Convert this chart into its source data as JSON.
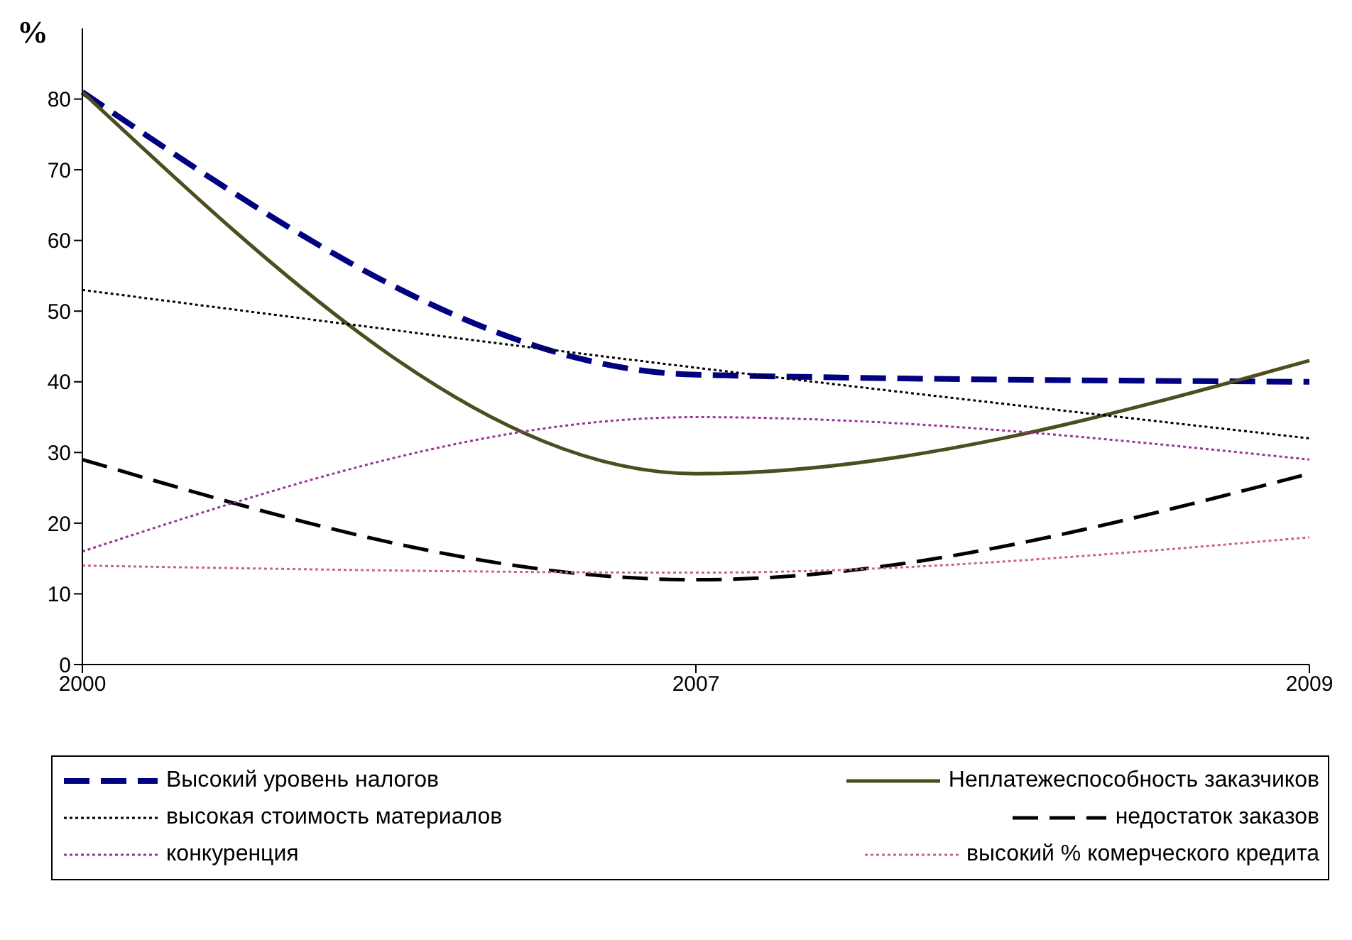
{
  "chart_data": {
    "type": "line",
    "ylabel": "%",
    "categories": [
      "2000",
      "2007",
      "2009"
    ],
    "ylim": [
      0,
      90
    ],
    "yticks": [
      0,
      10,
      20,
      30,
      40,
      50,
      60,
      70,
      80
    ],
    "grid": false,
    "legend": "bottom",
    "series": [
      {
        "name": "Высокий уровень налогов",
        "color": "#000080",
        "line_style": "dashed",
        "values": [
          81,
          41,
          40
        ]
      },
      {
        "name": "Неплатежеспособность заказчиков",
        "color": "#4d4d1f",
        "line_style": "solid",
        "values": [
          81,
          27,
          43
        ]
      },
      {
        "name": "высокая стоимость материалов",
        "color": "#000000",
        "line_style": "dotted",
        "values": [
          53,
          42,
          32
        ]
      },
      {
        "name": "недостаток заказов",
        "color": "#000000",
        "line_style": "dashed",
        "values": [
          29,
          12,
          27
        ]
      },
      {
        "name": "конкуренция",
        "color": "#993399",
        "line_style": "dotted",
        "values": [
          16,
          35,
          29
        ]
      },
      {
        "name": "высокий % комерческого кредита",
        "color": "#cc6677",
        "line_style": "dotted",
        "values": [
          14,
          13,
          18
        ]
      }
    ]
  }
}
